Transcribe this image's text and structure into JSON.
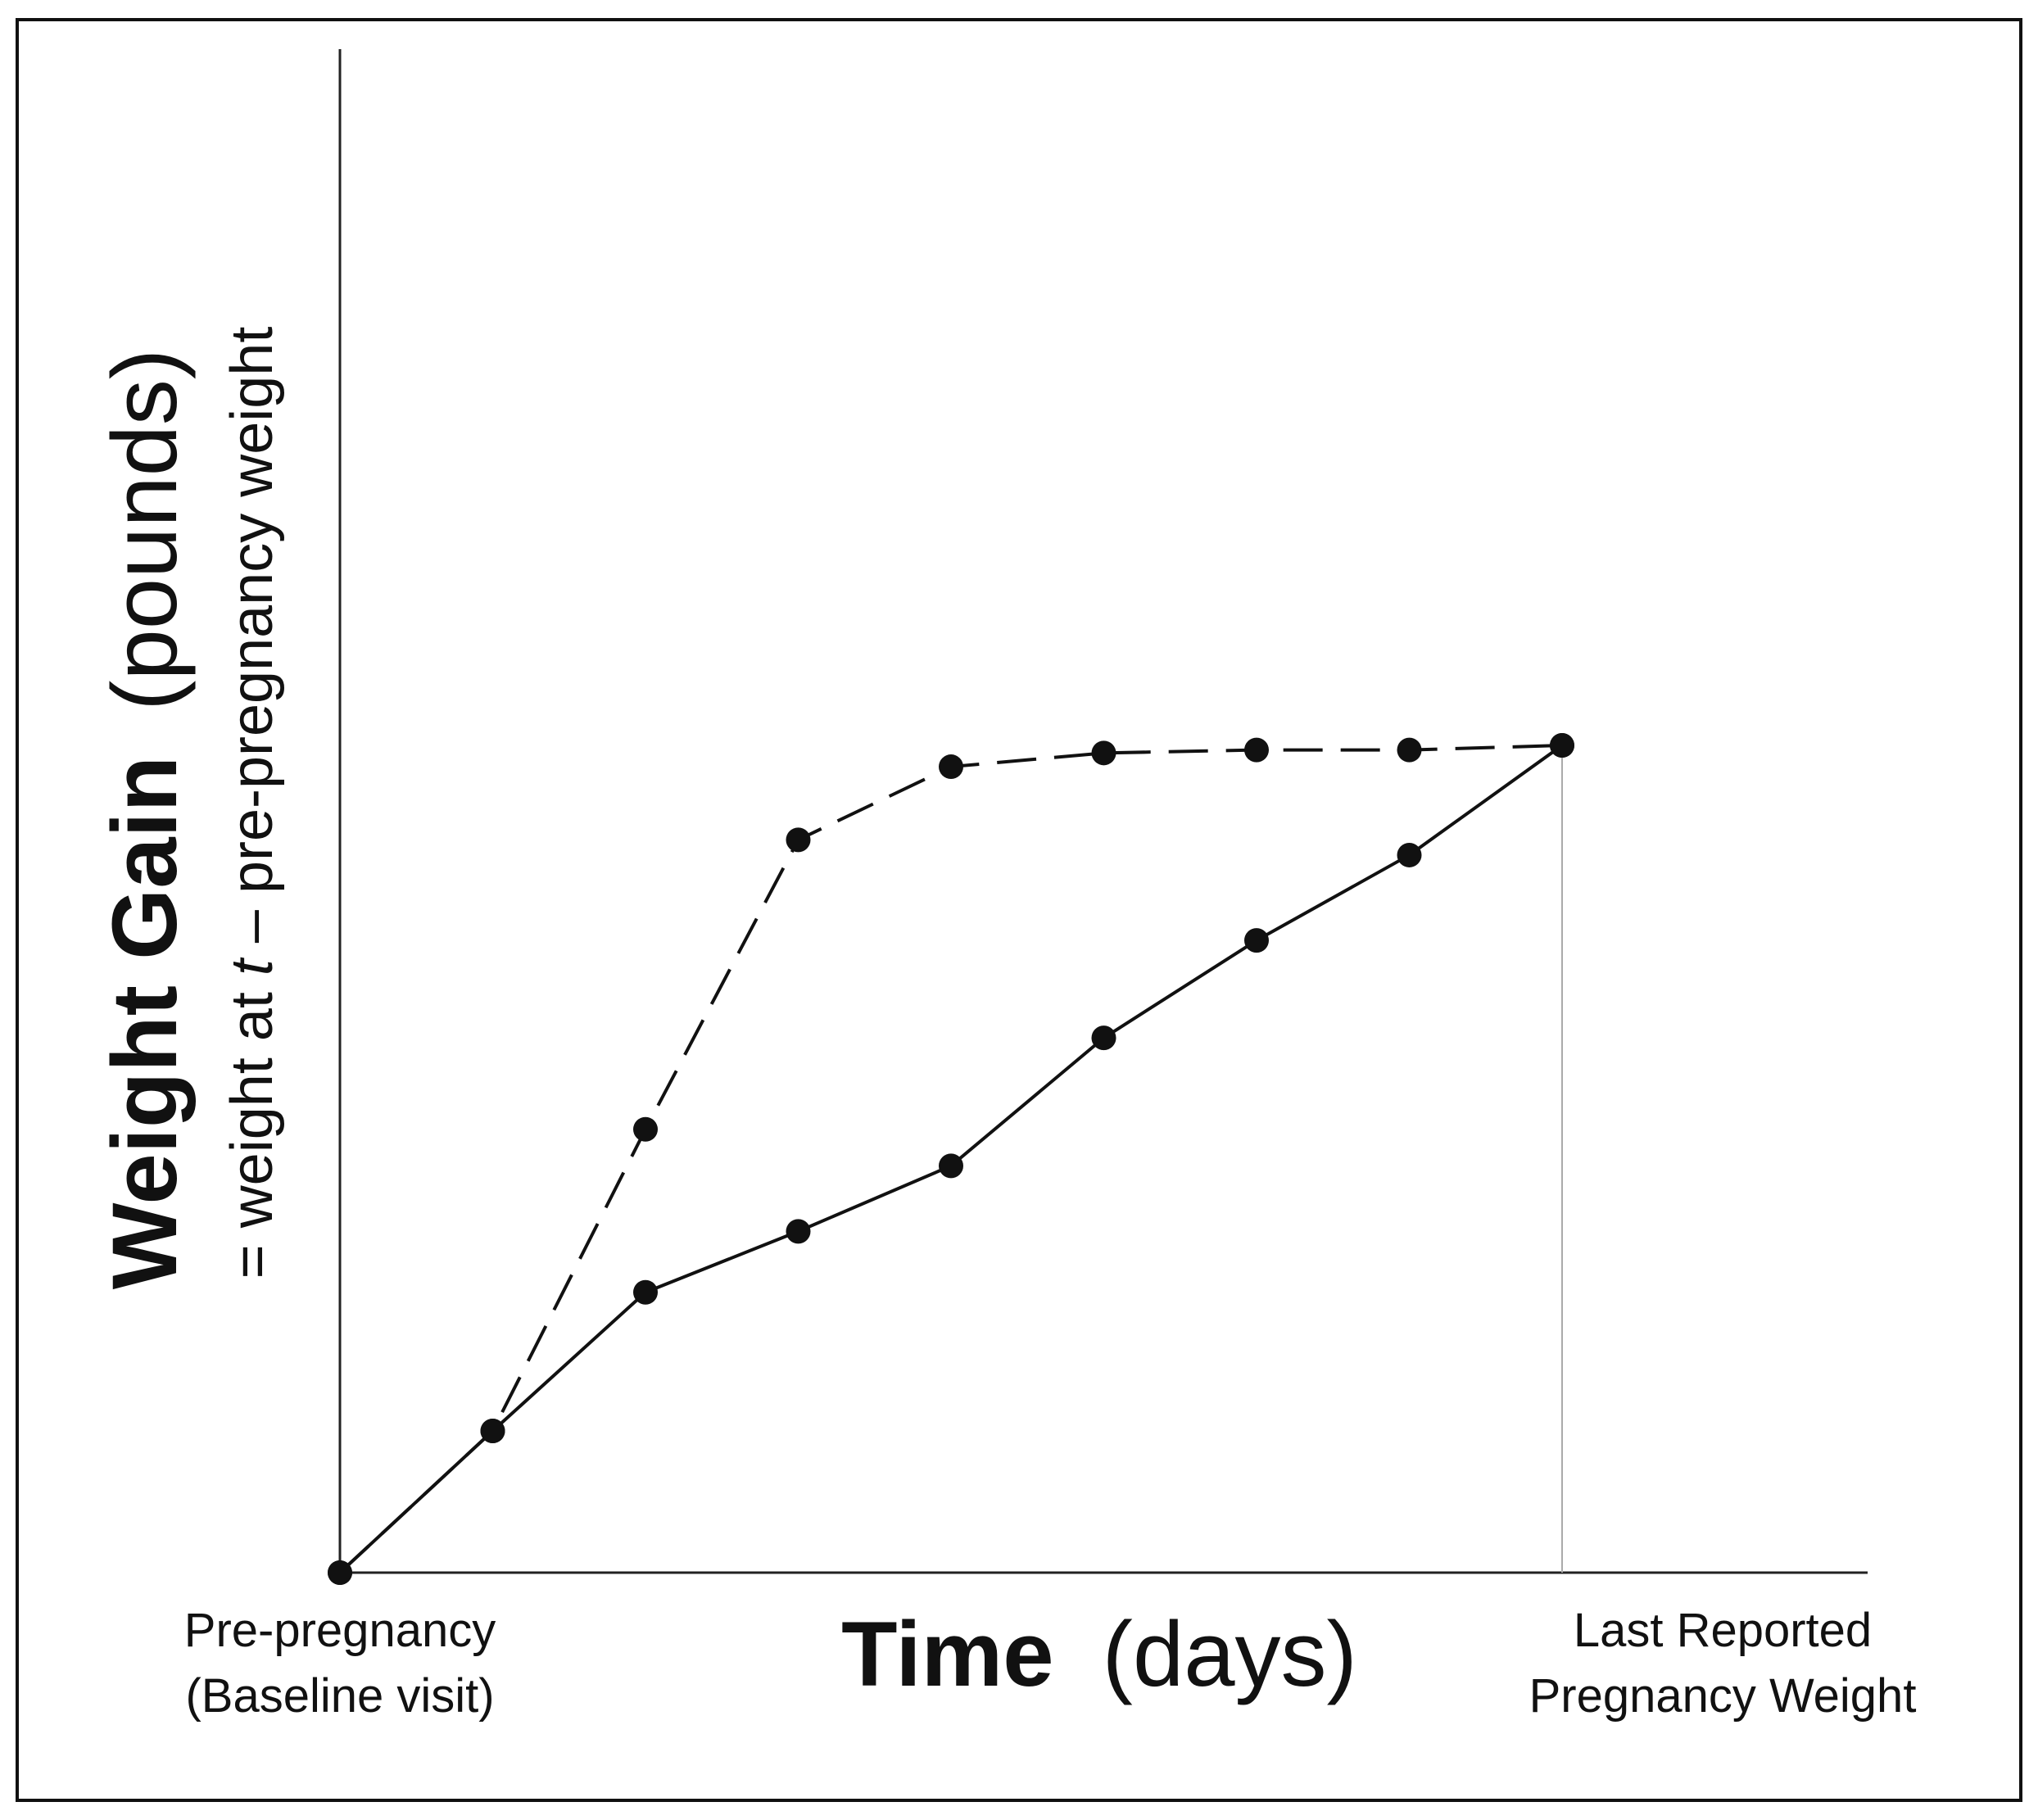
{
  "chart_data": {
    "type": "line",
    "title": "",
    "xlabel": {
      "bold": "Time",
      "normal": "(days)"
    },
    "ylabel": {
      "bold": "Weight Gain",
      "normal": "(pounds)",
      "formula_prefix": "= weight at ",
      "formula_var": "t",
      "formula_suffix": " – pre-pregnancy weight"
    },
    "x_start_label": [
      "Pre-pregnancy",
      "(Baseline visit)"
    ],
    "x_end_label": [
      "Last Reported",
      "Pregnancy Weight"
    ],
    "xlim": [
      0,
      10
    ],
    "ylim": [
      0,
      100
    ],
    "reference_line_x": 8,
    "series": [
      {
        "name": "dashed",
        "style": "dashed",
        "x": [
          0,
          1,
          2,
          3,
          4,
          5,
          6,
          7,
          8
        ],
        "y": [
          0,
          9.3,
          29.1,
          48.1,
          52.9,
          53.8,
          54.0,
          54.0,
          54.3
        ]
      },
      {
        "name": "solid",
        "style": "solid",
        "x": [
          0,
          1,
          2,
          3,
          4,
          5,
          6,
          7,
          8
        ],
        "y": [
          0,
          9.3,
          18.4,
          22.4,
          26.7,
          35.1,
          41.5,
          47.1,
          54.3
        ]
      }
    ],
    "colors": {
      "line": "#111111",
      "axis": "#222222",
      "reference": "#aaaaaa"
    }
  }
}
